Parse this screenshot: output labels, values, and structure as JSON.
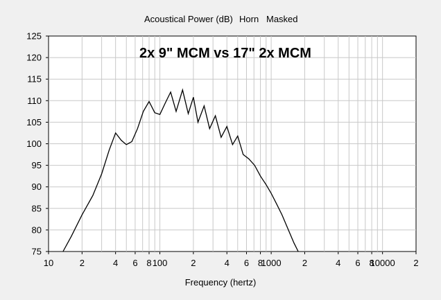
{
  "header": {
    "measure": "Acoustical Power (dB)",
    "mode": "Horn",
    "masked": "Masked"
  },
  "chart_data": {
    "type": "line",
    "title": "",
    "annotation": "2x 9\" MCM vs 17\" 2x MCM",
    "xlabel": "Frequency (hertz)",
    "ylabel": "",
    "x_scale": "log",
    "xlim": [
      10,
      20000
    ],
    "ylim": [
      75,
      125
    ],
    "grid": true,
    "x_tick_labels": [
      "10",
      "2",
      "4",
      "6",
      "8",
      "100",
      "2",
      "4",
      "6",
      "8",
      "1000",
      "2",
      "4",
      "6",
      "8",
      "10000",
      "2"
    ],
    "y_tick_labels": [
      "125",
      "120",
      "115",
      "110",
      "105",
      "100",
      "95",
      "90",
      "85",
      "80",
      "75"
    ],
    "series": [
      {
        "x": [
          13.5,
          16,
          20,
          25,
          30,
          35,
          40,
          45,
          50,
          56,
          63,
          71,
          80,
          90,
          100,
          112,
          125,
          140,
          160,
          180,
          200,
          220,
          250,
          280,
          315,
          355,
          400,
          450,
          500,
          560,
          630,
          710,
          800,
          900,
          1000,
          1120,
          1250,
          1400,
          1600,
          1750
        ],
        "y": [
          75,
          78.5,
          83.5,
          88,
          93,
          98.5,
          102.5,
          100.8,
          99.8,
          100.5,
          103.5,
          107.5,
          109.8,
          107.2,
          106.8,
          109.5,
          112,
          107.5,
          112.5,
          107,
          110.8,
          105,
          108.8,
          103.5,
          106.5,
          101.5,
          104,
          99.8,
          101.8,
          97.5,
          96.5,
          95,
          92.5,
          90.5,
          88.5,
          86,
          83.5,
          80.5,
          77,
          75
        ]
      }
    ]
  }
}
